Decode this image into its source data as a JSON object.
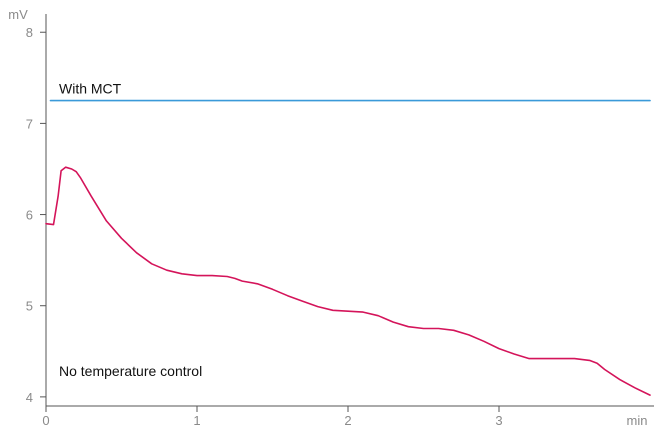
{
  "chart_data": {
    "type": "line",
    "y_unit": "mV",
    "x_unit": "min",
    "xlim": [
      0,
      4
    ],
    "ylim": [
      3.9,
      8.2
    ],
    "x_ticks": [
      0,
      1,
      2,
      3
    ],
    "y_ticks": [
      4,
      5,
      6,
      7,
      8
    ],
    "grid": false,
    "series": [
      {
        "label": "With MCT",
        "color": "#3a9ad9",
        "x": [
          0.03,
          4.0
        ],
        "y": [
          7.25,
          7.25
        ]
      },
      {
        "label": "No temperature control",
        "color": "#d4145a",
        "x": [
          0.0,
          0.05,
          0.08,
          0.1,
          0.13,
          0.17,
          0.2,
          0.23,
          0.3,
          0.4,
          0.5,
          0.6,
          0.7,
          0.8,
          0.9,
          1.0,
          1.1,
          1.2,
          1.25,
          1.3,
          1.4,
          1.5,
          1.6,
          1.7,
          1.8,
          1.9,
          2.0,
          2.1,
          2.2,
          2.3,
          2.4,
          2.5,
          2.6,
          2.7,
          2.8,
          2.9,
          3.0,
          3.1,
          3.2,
          3.3,
          3.4,
          3.5,
          3.6,
          3.65,
          3.7,
          3.8,
          3.9,
          4.0
        ],
        "y": [
          5.9,
          5.89,
          6.2,
          6.48,
          6.52,
          6.5,
          6.47,
          6.4,
          6.2,
          5.93,
          5.74,
          5.58,
          5.46,
          5.39,
          5.35,
          5.33,
          5.33,
          5.32,
          5.3,
          5.27,
          5.24,
          5.18,
          5.11,
          5.05,
          4.99,
          4.95,
          4.94,
          4.93,
          4.89,
          4.82,
          4.77,
          4.75,
          4.75,
          4.73,
          4.68,
          4.61,
          4.53,
          4.47,
          4.42,
          4.42,
          4.42,
          4.42,
          4.4,
          4.37,
          4.3,
          4.19,
          4.1,
          4.02
        ]
      }
    ]
  }
}
